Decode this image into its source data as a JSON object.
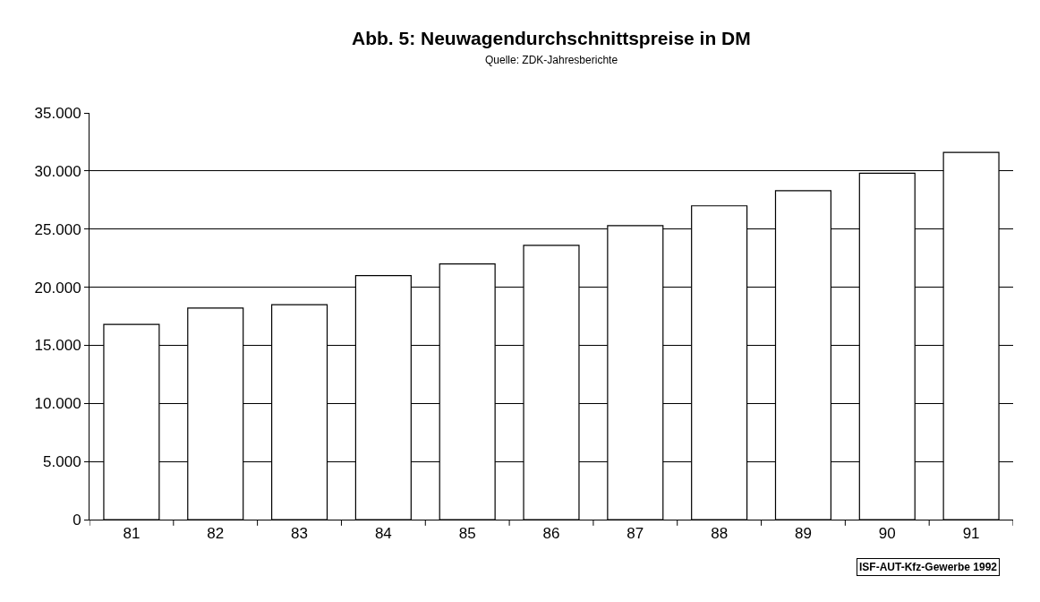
{
  "chart_data": {
    "type": "bar",
    "title": "Abb. 5: Neuwagendurchschnittspreise in DM",
    "subtitle": "Quelle: ZDK-Jahresberichte",
    "categories": [
      "81",
      "82",
      "83",
      "84",
      "85",
      "86",
      "87",
      "88",
      "89",
      "90",
      "91"
    ],
    "values": [
      16800,
      18200,
      18500,
      21000,
      22000,
      23600,
      25300,
      27000,
      28300,
      29800,
      31600
    ],
    "color": "#ffffff",
    "ylim": [
      0,
      35000
    ],
    "yticks": [
      {
        "value": 0,
        "label": "0"
      },
      {
        "value": 5000,
        "label": "5.000"
      },
      {
        "value": 10000,
        "label": "10.000"
      },
      {
        "value": 15000,
        "label": "15.000"
      },
      {
        "value": 20000,
        "label": "20.000"
      },
      {
        "value": 25000,
        "label": "25.000"
      },
      {
        "value": 30000,
        "label": "30.000"
      },
      {
        "value": 35000,
        "label": "35.000"
      }
    ],
    "grid": "y",
    "annotations": [
      "ISF-AUT-Kfz-Gewerbe 1992"
    ]
  }
}
